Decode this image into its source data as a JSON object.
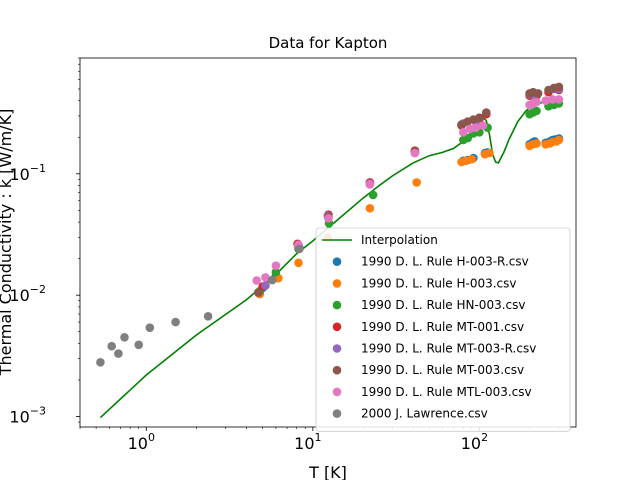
{
  "chart_data": {
    "type": "scatter",
    "title": "Data for Kapton",
    "xlabel": "T [K]",
    "ylabel": "Thermal Conductivity : k [W/m/K]",
    "xscale": "log",
    "yscale": "log",
    "xlim": [
      0.4,
      380
    ],
    "ylim": [
      0.00082,
      0.9
    ],
    "grid": false,
    "legend_position": "lower-right",
    "x_ticks": [
      {
        "value": 1,
        "base": "10",
        "exp": "0"
      },
      {
        "value": 10,
        "base": "10",
        "exp": "1"
      },
      {
        "value": 100,
        "base": "10",
        "exp": "2"
      }
    ],
    "y_ticks": [
      {
        "value": 0.001,
        "base": "10",
        "exp": "−3"
      },
      {
        "value": 0.01,
        "base": "10",
        "exp": "−2"
      },
      {
        "value": 0.1,
        "base": "10",
        "exp": "−1"
      }
    ],
    "line": {
      "name": "Interpolation",
      "color": "#008000",
      "points": [
        [
          0.53,
          0.00098
        ],
        [
          1,
          0.0022
        ],
        [
          2,
          0.0047
        ],
        [
          4,
          0.0092
        ],
        [
          6,
          0.0148
        ],
        [
          8,
          0.022
        ],
        [
          10,
          0.028
        ],
        [
          15,
          0.045
        ],
        [
          20,
          0.063
        ],
        [
          25,
          0.08
        ],
        [
          30,
          0.096
        ],
        [
          40,
          0.123
        ],
        [
          50,
          0.141
        ],
        [
          60,
          0.15
        ],
        [
          70,
          0.162
        ],
        [
          80,
          0.185
        ],
        [
          90,
          0.225
        ],
        [
          100,
          0.27
        ],
        [
          105,
          0.29
        ],
        [
          110,
          0.275
        ],
        [
          115,
          0.21
        ],
        [
          120,
          0.145
        ],
        [
          125,
          0.125
        ],
        [
          130,
          0.123
        ],
        [
          140,
          0.15
        ],
        [
          150,
          0.19
        ],
        [
          170,
          0.27
        ],
        [
          190,
          0.33
        ],
        [
          210,
          0.37
        ],
        [
          240,
          0.388
        ],
        [
          270,
          0.39
        ],
        [
          300,
          0.385
        ]
      ]
    },
    "series": [
      {
        "name": "1990 D. L. Rule H-003-R.csv",
        "color": "#1f77b4",
        "points": [
          [
            4.8,
            0.0107
          ],
          [
            5,
            0.0115
          ],
          [
            6,
            0.0145
          ],
          [
            8.3,
            0.0245
          ],
          [
            12.4,
            0.044
          ],
          [
            22,
            0.083
          ],
          [
            41,
            0.15
          ],
          [
            80,
            0.128
          ],
          [
            85,
            0.13
          ],
          [
            92,
            0.135
          ],
          [
            108,
            0.148
          ],
          [
            112,
            0.15
          ],
          [
            200,
            0.175
          ],
          [
            210,
            0.182
          ],
          [
            215,
            0.185
          ],
          [
            250,
            0.18
          ],
          [
            265,
            0.185
          ],
          [
            275,
            0.19
          ],
          [
            285,
            0.192
          ],
          [
            300,
            0.195
          ]
        ]
      },
      {
        "name": "1990 D. L. Rule H-003.csv",
        "color": "#ff7f0e",
        "points": [
          [
            4.8,
            0.0102
          ],
          [
            6.2,
            0.0138
          ],
          [
            8.2,
            0.0185
          ],
          [
            12.3,
            0.03
          ],
          [
            22,
            0.052
          ],
          [
            42,
            0.085
          ],
          [
            78,
            0.125
          ],
          [
            83,
            0.128
          ],
          [
            90,
            0.132
          ],
          [
            108,
            0.145
          ],
          [
            115,
            0.148
          ],
          [
            200,
            0.17
          ],
          [
            210,
            0.175
          ],
          [
            220,
            0.178
          ],
          [
            250,
            0.175
          ],
          [
            265,
            0.178
          ],
          [
            275,
            0.183
          ],
          [
            290,
            0.185
          ],
          [
            300,
            0.19
          ]
        ]
      },
      {
        "name": "1990 D. L. Rule HN-003.csv",
        "color": "#2ca02c",
        "points": [
          [
            4.8,
            0.0108
          ],
          [
            6,
            0.0155
          ],
          [
            8.2,
            0.024
          ],
          [
            12.5,
            0.039
          ],
          [
            23,
            0.067
          ],
          [
            80,
            0.19
          ],
          [
            85,
            0.197
          ],
          [
            92,
            0.215
          ],
          [
            100,
            0.22
          ],
          [
            112,
            0.24
          ],
          [
            200,
            0.31
          ],
          [
            210,
            0.32
          ],
          [
            220,
            0.33
          ],
          [
            260,
            0.36
          ],
          [
            280,
            0.37
          ],
          [
            300,
            0.38
          ]
        ]
      },
      {
        "name": "1990 D. L. Rule MT-001.csv",
        "color": "#d62728",
        "points": [
          [
            5,
            0.0118
          ],
          [
            8.1,
            0.0265
          ],
          [
            12.4,
            0.046
          ],
          [
            22,
            0.085
          ],
          [
            41,
            0.155
          ],
          [
            78,
            0.25
          ],
          [
            100,
            0.28
          ],
          [
            110,
            0.31
          ],
          [
            200,
            0.44
          ],
          [
            220,
            0.44
          ],
          [
            260,
            0.47
          ],
          [
            300,
            0.49
          ]
        ]
      },
      {
        "name": "1990 D. L. Rule MT-003-R.csv",
        "color": "#9467bd",
        "points": [
          [
            5.2,
            0.012
          ],
          [
            8.2,
            0.026
          ],
          [
            12.3,
            0.045
          ],
          [
            22,
            0.083
          ],
          [
            80,
            0.26
          ],
          [
            95,
            0.27
          ],
          [
            200,
            0.45
          ],
          [
            215,
            0.45
          ],
          [
            280,
            0.5
          ],
          [
            300,
            0.5
          ]
        ]
      },
      {
        "name": "1990 D. L. Rule MT-003.csv",
        "color": "#8c564b",
        "points": [
          [
            4.7,
            0.0105
          ],
          [
            8.2,
            0.025
          ],
          [
            12.4,
            0.044
          ],
          [
            22,
            0.082
          ],
          [
            41,
            0.152
          ],
          [
            78,
            0.255
          ],
          [
            85,
            0.27
          ],
          [
            92,
            0.28
          ],
          [
            100,
            0.29
          ],
          [
            110,
            0.32
          ],
          [
            200,
            0.46
          ],
          [
            210,
            0.47
          ],
          [
            225,
            0.46
          ],
          [
            260,
            0.49
          ],
          [
            280,
            0.51
          ],
          [
            300,
            0.52
          ]
        ]
      },
      {
        "name": "1990 D. L. Rule MTL-003.csv",
        "color": "#e377c2",
        "points": [
          [
            4.6,
            0.0132
          ],
          [
            5.2,
            0.014
          ],
          [
            6,
            0.0175
          ],
          [
            8.2,
            0.026
          ],
          [
            12.4,
            0.043
          ],
          [
            22,
            0.082
          ],
          [
            41,
            0.148
          ],
          [
            80,
            0.22
          ],
          [
            88,
            0.235
          ],
          [
            95,
            0.24
          ],
          [
            105,
            0.25
          ],
          [
            200,
            0.37
          ],
          [
            210,
            0.38
          ],
          [
            220,
            0.39
          ],
          [
            250,
            0.4
          ],
          [
            275,
            0.41
          ],
          [
            300,
            0.41
          ]
        ]
      },
      {
        "name": "2000 J. Lawrence.csv",
        "color": "#7f7f7f",
        "points": [
          [
            0.53,
            0.0028
          ],
          [
            0.62,
            0.0038
          ],
          [
            0.68,
            0.0033
          ],
          [
            0.74,
            0.0045
          ],
          [
            0.9,
            0.0039
          ],
          [
            1.05,
            0.0054
          ],
          [
            1.5,
            0.006
          ],
          [
            2.35,
            0.0067
          ],
          [
            5.7,
            0.0133
          ],
          [
            8.3,
            0.024
          ]
        ]
      }
    ]
  }
}
